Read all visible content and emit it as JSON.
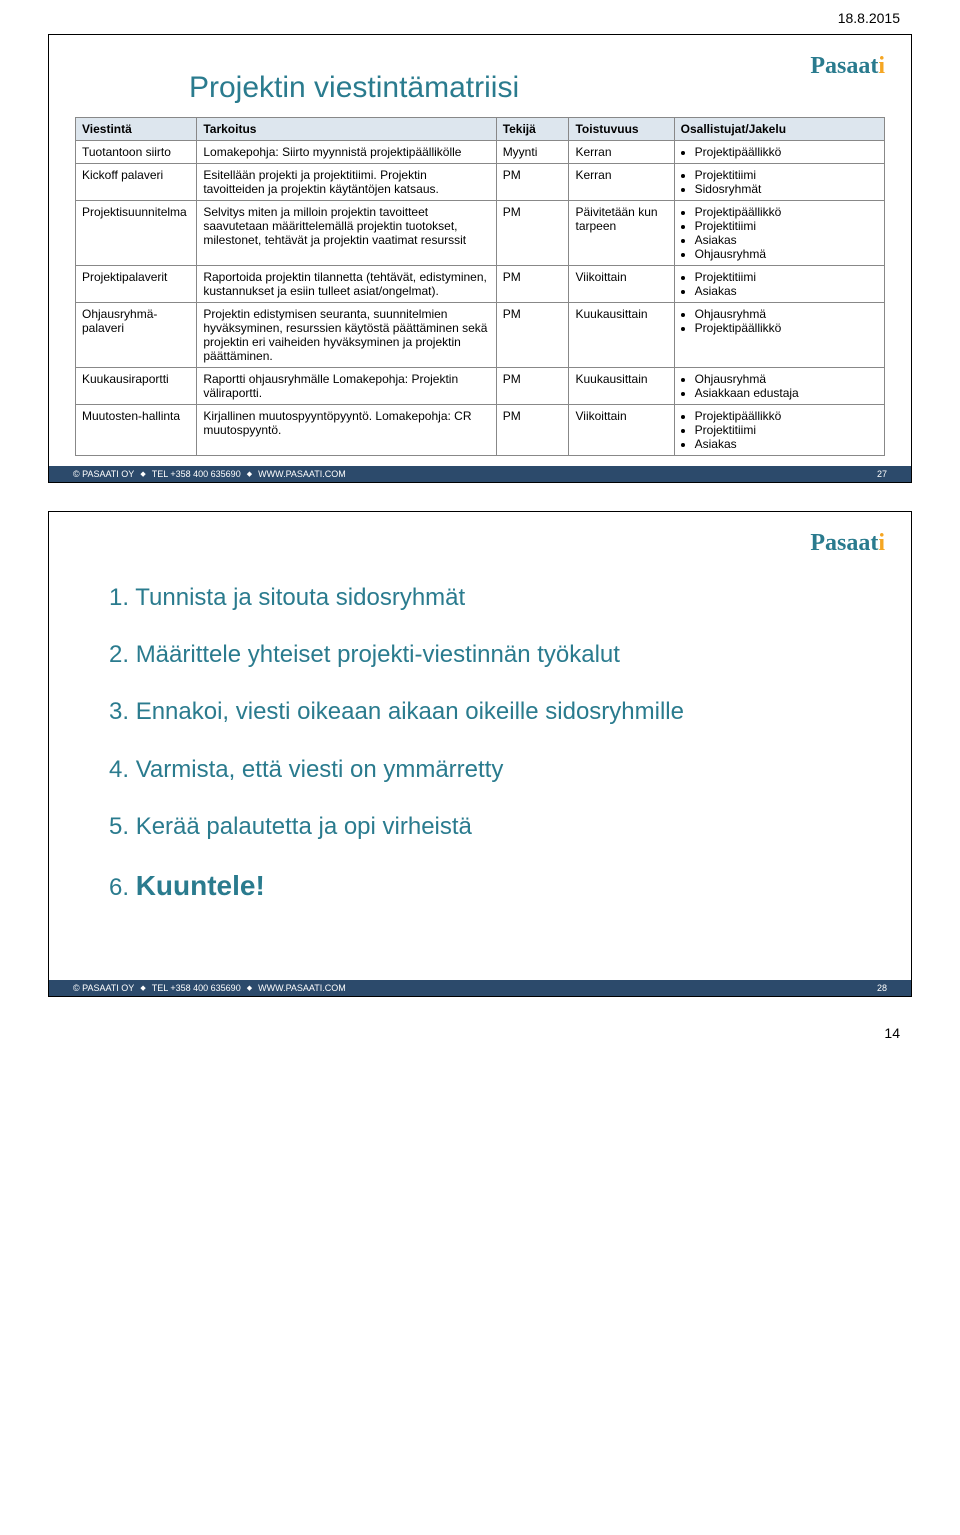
{
  "page_date": "18.8.2015",
  "brand_name": "Pasaat",
  "slide1": {
    "title": "Projektin viestintämatriisi",
    "columns": [
      "Viestintä",
      "Tarkoitus",
      "Tekijä",
      "Toistuvuus",
      "Osallistujat/Jakelu"
    ],
    "rows": [
      {
        "c0": "Tuotantoon siirto",
        "c1": "Lomakepohja: Siirto myynnistä projektipäällikölle",
        "c2": "Myynti",
        "c3": "Kerran",
        "p": [
          "Projektipäällikkö"
        ]
      },
      {
        "c0": "Kickoff palaveri",
        "c1": "Esitellään projekti ja projektitiimi. Projektin tavoitteiden ja projektin käytäntöjen katsaus.",
        "c2": "PM",
        "c3": "Kerran",
        "p": [
          "Projektitiimi",
          "Sidosryhmät"
        ]
      },
      {
        "c0": "Projektisuunnitelma",
        "c1": "Selvitys miten ja milloin projektin tavoitteet saavutetaan määrittelemällä projektin tuotokset, milestonet, tehtävät ja projektin vaatimat resurssit",
        "c2": "PM",
        "c3": "Päivitetään kun tarpeen",
        "p": [
          "Projektipäällikkö",
          "Projektitiimi",
          "Asiakas",
          "Ohjausryhmä"
        ]
      },
      {
        "c0": "Projektipalaverit",
        "c1": "Raportoida projektin tilannetta (tehtävät, edistyminen, kustannukset ja esiin tulleet asiat/ongelmat).",
        "c2": "PM",
        "c3": "Viikoittain",
        "p": [
          "Projektitiimi",
          "Asiakas"
        ]
      },
      {
        "c0": "Ohjausryhmä-palaveri",
        "c1": "Projektin edistymisen seuranta, suunnitelmien hyväksyminen, resurssien käytöstä päättäminen sekä projektin eri vaiheiden hyväksyminen ja projektin päättäminen.",
        "c2": "PM",
        "c3": "Kuukausittain",
        "p": [
          "Ohjausryhmä",
          "Projektipäällikkö"
        ]
      },
      {
        "c0": "Kuukausiraportti",
        "c1": "Raportti ohjausryhmälle Lomakepohja: Projektin väliraportti.",
        "c2": "PM",
        "c3": "Kuukausittain",
        "p": [
          "Ohjausryhmä",
          "Asiakkaan edustaja"
        ]
      },
      {
        "c0": "Muutosten-hallinta",
        "c1": "Kirjallinen muutospyyntöpyyntö. Lomakepohja: CR muutospyyntö.",
        "c2": "PM",
        "c3": "Viikoittain",
        "p": [
          "Projektipäällikkö",
          "Projektitiimi",
          "Asiakas"
        ]
      }
    ],
    "footer_copyright": "© PASAATI OY",
    "footer_tel": "TEL +358 400 635690",
    "footer_web": "WWW.PASAATI.COM",
    "footer_pagenum": "27"
  },
  "slide2": {
    "items": [
      {
        "num": "1.",
        "text": "Tunnista ja sitouta sidosryhmät"
      },
      {
        "num": "2.",
        "text": "Määrittele yhteiset projekti-viestinnän työkalut"
      },
      {
        "num": "3.",
        "text": "Ennakoi, viesti oikeaan aikaan oikeille sidosryhmille"
      },
      {
        "num": "4.",
        "text": "Varmista, että viesti on ymmärretty"
      },
      {
        "num": "5.",
        "text": "Kerää palautetta ja opi virheistä"
      },
      {
        "num": "6.",
        "text": "Kuuntele!"
      }
    ],
    "footer_copyright": "© PASAATI OY",
    "footer_tel": "TEL +358 400 635690",
    "footer_web": "WWW.PASAATI.COM",
    "footer_pagenum": "28"
  },
  "bottom_page_num": "14"
}
